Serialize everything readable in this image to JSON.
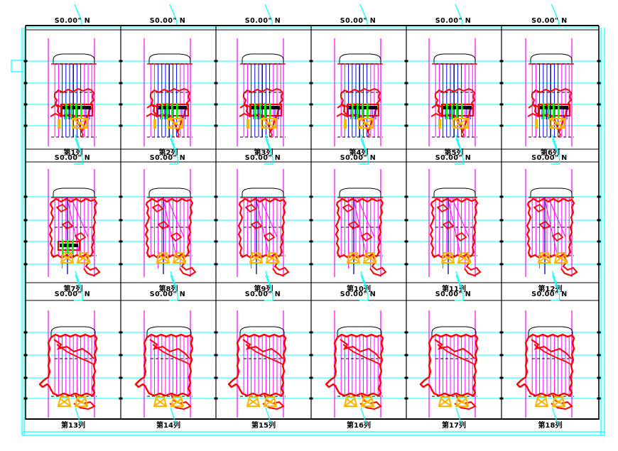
{
  "drawing": {
    "title_hint": "column-section-sheet",
    "palette": {
      "frame": "#000000",
      "elevation_grid": "#00ffff",
      "survey_line": "#ff00ff",
      "contour": "#ff0000",
      "bolt": "#0000ff",
      "bolt_dark": "#0000a0",
      "support": "#00ff00",
      "timber": "#ffb400",
      "text": "#000000",
      "background": "#ffffff"
    },
    "rows": [
      {
        "panels": [
          {
            "heading": "S0.00\" N",
            "label": "第1列"
          },
          {
            "heading": "S0.00\" N",
            "label": "第2列"
          },
          {
            "heading": "S0.00\" N",
            "label": "第3列"
          },
          {
            "heading": "S0.00\" N",
            "label": "第4列"
          },
          {
            "heading": "S0.00\" N",
            "label": "第5列"
          },
          {
            "heading": "S0.00\" N",
            "label": "第6列"
          }
        ]
      },
      {
        "panels": [
          {
            "heading": "S0.00\" N",
            "label": "第7列"
          },
          {
            "heading": "S0.00\" N",
            "label": "第8列"
          },
          {
            "heading": "S0.00\" N",
            "label": "第9列"
          },
          {
            "heading": "S0.00\" N",
            "label": "第10列"
          },
          {
            "heading": "S0.00\" N",
            "label": "第11列"
          },
          {
            "heading": "S0.00\" N",
            "label": "第12列"
          }
        ]
      },
      {
        "panels": [
          {
            "heading": "S0.00\" N",
            "label": "第13列"
          },
          {
            "heading": "S0.00\" N",
            "label": "第14列"
          },
          {
            "heading": "S0.00\" N",
            "label": "第15列"
          },
          {
            "heading": "S0.00\" N",
            "label": "第16列"
          },
          {
            "heading": "S0.00\" N",
            "label": "第17列"
          },
          {
            "heading": "S0.00\" N",
            "label": "第18列"
          }
        ]
      }
    ]
  }
}
